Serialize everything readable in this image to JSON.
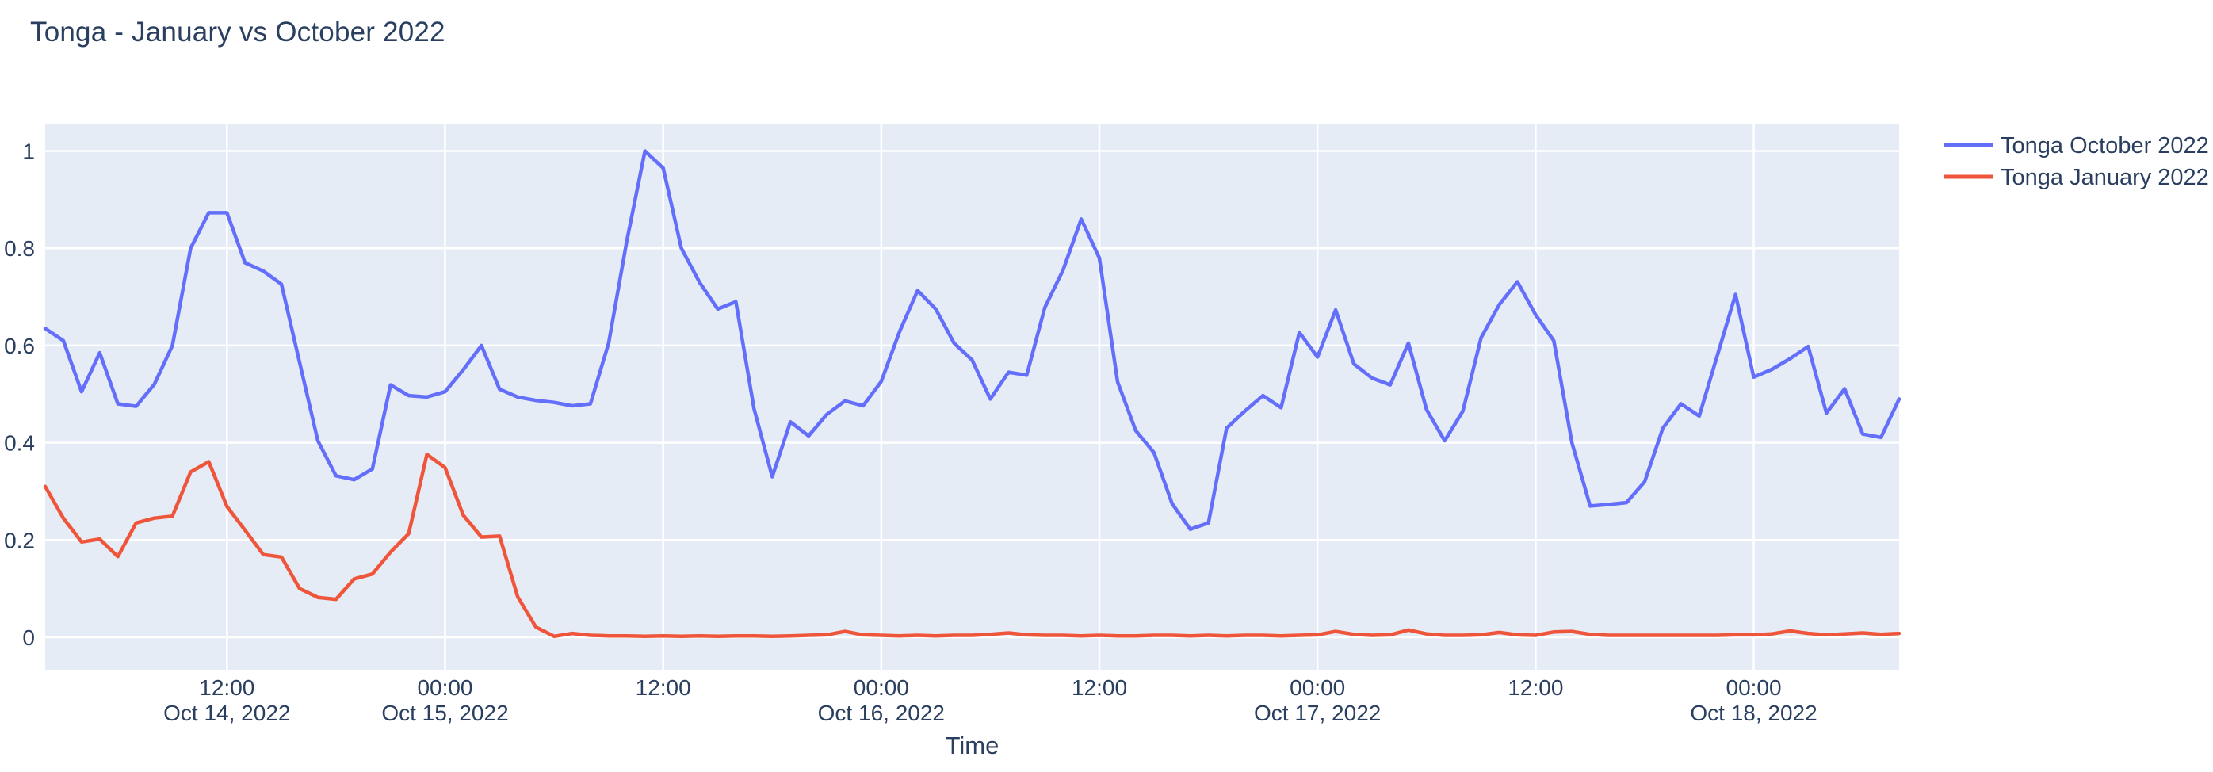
{
  "title": "Tonga - January vs October 2022",
  "colors": {
    "october_series": "#636efa",
    "january_series": "#ef553b",
    "plot_background": "#e5ecf6",
    "grid": "#ffffff",
    "text": "#2a3f5f"
  },
  "chart_data": {
    "type": "line",
    "title": "Tonga - January vs October 2022",
    "xlabel": "Time",
    "ylabel": "",
    "grid": true,
    "legend_position": "right-top",
    "x_axis": {
      "start": "Oct 14, 2022 02:00",
      "step_hours": 1,
      "count": 103,
      "ticks": [
        {
          "t": 10,
          "line1": "12:00",
          "line2": "Oct 14, 2022"
        },
        {
          "t": 22,
          "line1": "00:00",
          "line2": "Oct 15, 2022"
        },
        {
          "t": 34,
          "line1": "12:00",
          "line2": ""
        },
        {
          "t": 46,
          "line1": "00:00",
          "line2": "Oct 16, 2022"
        },
        {
          "t": 58,
          "line1": "12:00",
          "line2": ""
        },
        {
          "t": 70,
          "line1": "00:00",
          "line2": "Oct 17, 2022"
        },
        {
          "t": 82,
          "line1": "12:00",
          "line2": ""
        },
        {
          "t": 94,
          "line1": "00:00",
          "line2": "Oct 18, 2022"
        }
      ]
    },
    "y_axis": {
      "ylim": [
        -0.067,
        1.054
      ],
      "ticks": [
        {
          "v": 0,
          "label": "0"
        },
        {
          "v": 0.2,
          "label": "0.2"
        },
        {
          "v": 0.4,
          "label": "0.4"
        },
        {
          "v": 0.6,
          "label": "0.6"
        },
        {
          "v": 0.8,
          "label": "0.8"
        },
        {
          "v": 1,
          "label": "1"
        }
      ]
    },
    "series": [
      {
        "name": "Tonga October 2022",
        "color": "#636efa",
        "values": [
          0.635,
          0.61,
          0.505,
          0.585,
          0.48,
          0.475,
          0.52,
          0.6,
          0.8,
          0.873,
          0.873,
          0.77,
          0.753,
          0.726,
          0.565,
          0.404,
          0.332,
          0.324,
          0.346,
          0.519,
          0.497,
          0.494,
          0.505,
          0.55,
          0.6,
          0.51,
          0.494,
          0.487,
          0.483,
          0.476,
          0.48,
          0.605,
          0.815,
          1.0,
          0.965,
          0.8,
          0.73,
          0.675,
          0.69,
          0.47,
          0.33,
          0.443,
          0.414,
          0.458,
          0.486,
          0.476,
          0.526,
          0.628,
          0.713,
          0.675,
          0.605,
          0.57,
          0.49,
          0.545,
          0.539,
          0.678,
          0.755,
          0.86,
          0.78,
          0.525,
          0.425,
          0.38,
          0.275,
          0.222,
          0.235,
          0.43,
          0.465,
          0.497,
          0.472,
          0.627,
          0.576,
          0.673,
          0.562,
          0.533,
          0.519,
          0.605,
          0.468,
          0.404,
          0.465,
          0.616,
          0.684,
          0.731,
          0.663,
          0.61,
          0.4,
          0.27,
          0.273,
          0.277,
          0.32,
          0.43,
          0.48,
          0.455,
          0.58,
          0.705,
          0.535,
          0.551,
          0.573,
          0.598,
          0.461,
          0.511,
          0.418,
          0.411,
          0.49
        ]
      },
      {
        "name": "Tonga January 2022",
        "color": "#ef553b",
        "values": [
          0.31,
          0.245,
          0.196,
          0.202,
          0.166,
          0.235,
          0.245,
          0.249,
          0.34,
          0.361,
          0.269,
          0.22,
          0.17,
          0.165,
          0.1,
          0.082,
          0.078,
          0.12,
          0.13,
          0.175,
          0.213,
          0.376,
          0.349,
          0.251,
          0.206,
          0.208,
          0.083,
          0.021,
          0.002,
          0.008,
          0.004,
          0.003,
          0.003,
          0.002,
          0.003,
          0.002,
          0.003,
          0.002,
          0.003,
          0.003,
          0.002,
          0.003,
          0.004,
          0.005,
          0.012,
          0.005,
          0.004,
          0.003,
          0.004,
          0.003,
          0.004,
          0.004,
          0.006,
          0.009,
          0.005,
          0.004,
          0.004,
          0.003,
          0.004,
          0.003,
          0.003,
          0.004,
          0.004,
          0.003,
          0.004,
          0.003,
          0.004,
          0.004,
          0.003,
          0.004,
          0.005,
          0.012,
          0.006,
          0.004,
          0.005,
          0.015,
          0.007,
          0.004,
          0.004,
          0.005,
          0.01,
          0.005,
          0.004,
          0.011,
          0.012,
          0.006,
          0.004,
          0.004,
          0.004,
          0.004,
          0.004,
          0.004,
          0.004,
          0.005,
          0.005,
          0.007,
          0.013,
          0.008,
          0.005,
          0.007,
          0.009,
          0.006,
          0.008
        ]
      }
    ],
    "legend": [
      "Tonga October 2022",
      "Tonga January 2022"
    ]
  }
}
